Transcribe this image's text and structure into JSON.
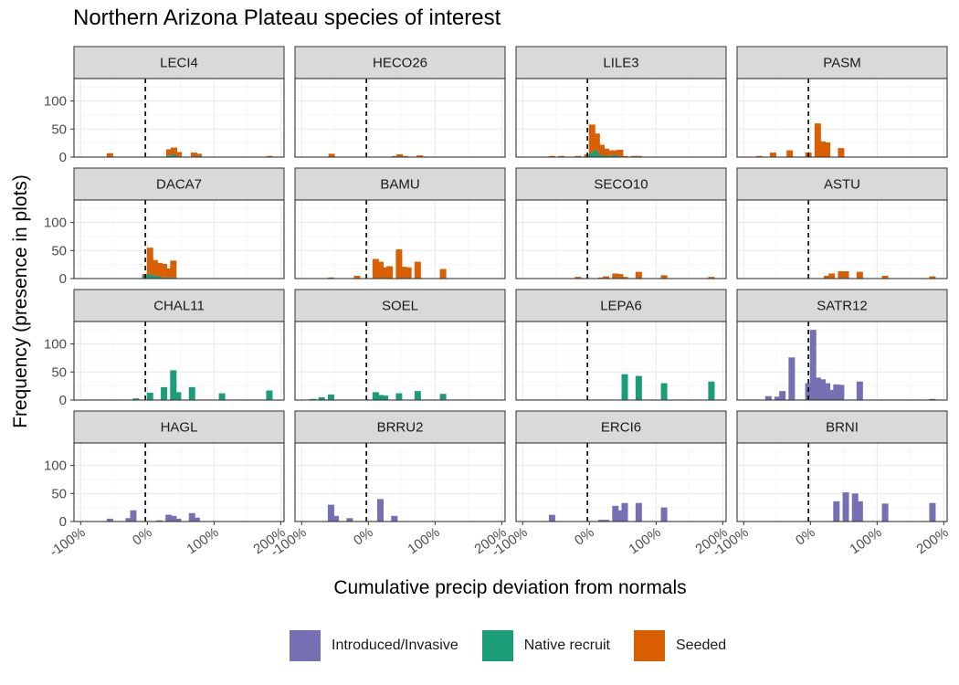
{
  "chart_data": {
    "type": "bar",
    "title": "Northern Arizona Plateau species of interest",
    "xlabel": "Cumulative precip deviation from normals",
    "ylabel": "Frequency (presence in plots)",
    "xlim": [
      -1.0,
      2.0
    ],
    "ylim": [
      0,
      130
    ],
    "x_ticks": [
      -1,
      0,
      1,
      2
    ],
    "x_tick_labels": [
      "-100%",
      "0%",
      "100%",
      "200%"
    ],
    "y_ticks": [
      0,
      50,
      100
    ],
    "y_tick_labels": [
      "0",
      "50",
      "100"
    ],
    "reference_line_x": -0.03,
    "stacked": true,
    "grid": true,
    "legend_position": "bottom",
    "colors": {
      "Introduced/Invasive": "#7570b3",
      "Native recruit": "#1b9e77",
      "Seeded": "#d95f02"
    },
    "legend": [
      "Introduced/Invasive",
      "Native recruit",
      "Seeded"
    ],
    "panels": [
      {
        "label": "LECI4",
        "bars": [
          {
            "x": -0.56,
            "values": {
              "Seeded": 7
            }
          },
          {
            "x": 0.33,
            "values": {
              "Native recruit": 3,
              "Seeded": 11
            }
          },
          {
            "x": 0.4,
            "values": {
              "Native recruit": 5,
              "Seeded": 12
            }
          },
          {
            "x": 0.47,
            "values": {
              "Native recruit": 2,
              "Seeded": 7
            }
          },
          {
            "x": 0.7,
            "values": {
              "Native recruit": 1,
              "Seeded": 7
            }
          },
          {
            "x": 0.77,
            "values": {
              "Native recruit": 2,
              "Seeded": 4
            }
          },
          {
            "x": 1.83,
            "values": {
              "Seeded": 2
            }
          }
        ]
      },
      {
        "label": "HECO26",
        "bars": [
          {
            "x": -0.55,
            "values": {
              "Seeded": 6
            }
          },
          {
            "x": 0.4,
            "values": {
              "Seeded": 2
            }
          },
          {
            "x": 0.47,
            "values": {
              "Seeded": 5
            }
          },
          {
            "x": 0.55,
            "values": {
              "Seeded": 2
            }
          },
          {
            "x": 0.77,
            "values": {
              "Seeded": 3
            }
          },
          {
            "x": 0.84,
            "values": {
              "Seeded": 1
            }
          }
        ]
      },
      {
        "label": "LILE3",
        "bars": [
          {
            "x": -0.56,
            "values": {
              "Seeded": 2
            }
          },
          {
            "x": -0.42,
            "values": {
              "Seeded": 2
            }
          },
          {
            "x": -0.17,
            "values": {
              "Seeded": 2
            }
          },
          {
            "x": -0.03,
            "values": {
              "Native recruit": 2,
              "Seeded": 3
            }
          },
          {
            "x": 0.04,
            "values": {
              "Native recruit": 8,
              "Seeded": 50
            }
          },
          {
            "x": 0.11,
            "values": {
              "Native recruit": 12,
              "Seeded": 30
            }
          },
          {
            "x": 0.18,
            "values": {
              "Native recruit": 4,
              "Seeded": 18
            }
          },
          {
            "x": 0.25,
            "values": {
              "Native recruit": 3,
              "Seeded": 12
            }
          },
          {
            "x": 0.32,
            "values": {
              "Native recruit": 2,
              "Seeded": 10
            }
          },
          {
            "x": 0.39,
            "values": {
              "Native recruit": 4,
              "Seeded": 8
            }
          },
          {
            "x": 0.46,
            "values": {
              "Native recruit": 2,
              "Seeded": 11
            }
          },
          {
            "x": 0.53,
            "values": {
              "Seeded": 2
            }
          },
          {
            "x": 0.67,
            "values": {
              "Seeded": 2
            }
          },
          {
            "x": 0.74,
            "values": {
              "Seeded": 2
            }
          }
        ]
      },
      {
        "label": "PASM",
        "bars": [
          {
            "x": -0.77,
            "values": {
              "Seeded": 2
            }
          },
          {
            "x": -0.56,
            "values": {
              "Seeded": 8
            }
          },
          {
            "x": -0.31,
            "values": {
              "Seeded": 12
            }
          },
          {
            "x": -0.03,
            "values": {
              "Seeded": 8
            }
          },
          {
            "x": 0.11,
            "values": {
              "Seeded": 60
            }
          },
          {
            "x": 0.18,
            "values": {
              "Seeded": 28
            }
          },
          {
            "x": 0.25,
            "values": {
              "Seeded": 26
            }
          },
          {
            "x": 0.46,
            "values": {
              "Seeded": 16
            }
          }
        ]
      },
      {
        "label": "DACA7",
        "bars": [
          {
            "x": -0.03,
            "values": {
              "Native recruit": 5,
              "Seeded": 3
            }
          },
          {
            "x": 0.04,
            "values": {
              "Native recruit": 8,
              "Seeded": 47
            }
          },
          {
            "x": 0.11,
            "values": {
              "Native recruit": 6,
              "Seeded": 27
            }
          },
          {
            "x": 0.18,
            "values": {
              "Native recruit": 4,
              "Seeded": 24
            }
          },
          {
            "x": 0.25,
            "values": {
              "Native recruit": 2,
              "Seeded": 24
            }
          },
          {
            "x": 0.32,
            "values": {
              "Native recruit": 2,
              "Seeded": 16
            }
          },
          {
            "x": 0.39,
            "values": {
              "Native recruit": 2,
              "Seeded": 30
            }
          }
        ]
      },
      {
        "label": "BAMU",
        "bars": [
          {
            "x": -0.56,
            "values": {
              "Seeded": 2
            }
          },
          {
            "x": -0.17,
            "values": {
              "Seeded": 5
            }
          },
          {
            "x": 0.11,
            "values": {
              "Seeded": 35
            }
          },
          {
            "x": 0.18,
            "values": {
              "Seeded": 30
            }
          },
          {
            "x": 0.25,
            "values": {
              "Seeded": 20
            }
          },
          {
            "x": 0.32,
            "values": {
              "Seeded": 22
            }
          },
          {
            "x": 0.46,
            "values": {
              "Seeded": 52
            }
          },
          {
            "x": 0.53,
            "values": {
              "Seeded": 21
            }
          },
          {
            "x": 0.6,
            "values": {
              "Seeded": 20
            }
          },
          {
            "x": 0.74,
            "values": {
              "Seeded": 30
            }
          },
          {
            "x": 1.12,
            "values": {
              "Seeded": 17
            }
          }
        ]
      },
      {
        "label": "SECO10",
        "bars": [
          {
            "x": -0.17,
            "values": {
              "Seeded": 3
            }
          },
          {
            "x": 0.18,
            "values": {
              "Seeded": 2
            }
          },
          {
            "x": 0.25,
            "values": {
              "Seeded": 4
            }
          },
          {
            "x": 0.39,
            "values": {
              "Seeded": 9
            }
          },
          {
            "x": 0.46,
            "values": {
              "Seeded": 8
            }
          },
          {
            "x": 0.53,
            "values": {
              "Seeded": 3
            }
          },
          {
            "x": 0.74,
            "values": {
              "Seeded": 12
            }
          },
          {
            "x": 1.12,
            "values": {
              "Seeded": 6
            }
          },
          {
            "x": 1.83,
            "values": {
              "Seeded": 3
            }
          }
        ]
      },
      {
        "label": "ASTU",
        "bars": [
          {
            "x": 0.25,
            "values": {
              "Seeded": 5
            }
          },
          {
            "x": 0.32,
            "values": {
              "Seeded": 9
            }
          },
          {
            "x": 0.46,
            "values": {
              "Seeded": 13
            }
          },
          {
            "x": 0.53,
            "values": {
              "Seeded": 13
            }
          },
          {
            "x": 0.74,
            "values": {
              "Seeded": 12
            }
          },
          {
            "x": 1.12,
            "values": {
              "Seeded": 5
            }
          },
          {
            "x": 1.83,
            "values": {
              "Seeded": 4
            }
          }
        ]
      },
      {
        "label": "CHAL11",
        "bars": [
          {
            "x": -0.17,
            "values": {
              "Native recruit": 3
            }
          },
          {
            "x": 0.04,
            "values": {
              "Native recruit": 13
            }
          },
          {
            "x": 0.25,
            "values": {
              "Native recruit": 23
            }
          },
          {
            "x": 0.39,
            "values": {
              "Native recruit": 53
            }
          },
          {
            "x": 0.46,
            "values": {
              "Native recruit": 14
            }
          },
          {
            "x": 0.67,
            "values": {
              "Native recruit": 23
            }
          },
          {
            "x": 1.12,
            "values": {
              "Native recruit": 12
            }
          },
          {
            "x": 1.83,
            "values": {
              "Native recruit": 17
            }
          }
        ]
      },
      {
        "label": "SOEL",
        "bars": [
          {
            "x": -0.83,
            "values": {
              "Native recruit": 2
            }
          },
          {
            "x": -0.7,
            "values": {
              "Native recruit": 5
            }
          },
          {
            "x": -0.56,
            "values": {
              "Native recruit": 10
            }
          },
          {
            "x": 0.11,
            "values": {
              "Native recruit": 14
            }
          },
          {
            "x": 0.18,
            "values": {
              "Native recruit": 9
            }
          },
          {
            "x": 0.25,
            "values": {
              "Native recruit": 8
            }
          },
          {
            "x": 0.46,
            "values": {
              "Native recruit": 12
            }
          },
          {
            "x": 0.74,
            "values": {
              "Native recruit": 16
            }
          },
          {
            "x": 1.12,
            "values": {
              "Native recruit": 11
            }
          }
        ]
      },
      {
        "label": "LEPA6",
        "bars": [
          {
            "x": 0.53,
            "values": {
              "Native recruit": 46
            }
          },
          {
            "x": 0.74,
            "values": {
              "Native recruit": 43
            }
          },
          {
            "x": 1.12,
            "values": {
              "Native recruit": 30
            }
          },
          {
            "x": 1.83,
            "values": {
              "Native recruit": 33
            }
          }
        ]
      },
      {
        "label": "SATR12",
        "bars": [
          {
            "x": -0.63,
            "values": {
              "Introduced/Invasive": 7
            }
          },
          {
            "x": -0.49,
            "values": {
              "Introduced/Invasive": 6
            }
          },
          {
            "x": -0.42,
            "values": {
              "Introduced/Invasive": 16
            }
          },
          {
            "x": -0.28,
            "values": {
              "Introduced/Invasive": 76
            }
          },
          {
            "x": -0.03,
            "values": {
              "Introduced/Invasive": 30
            }
          },
          {
            "x": 0.04,
            "values": {
              "Introduced/Invasive": 125
            }
          },
          {
            "x": 0.11,
            "values": {
              "Introduced/Invasive": 40
            }
          },
          {
            "x": 0.18,
            "values": {
              "Introduced/Invasive": 37
            }
          },
          {
            "x": 0.25,
            "values": {
              "Introduced/Invasive": 30
            }
          },
          {
            "x": 0.32,
            "values": {
              "Introduced/Invasive": 18
            }
          },
          {
            "x": 0.39,
            "values": {
              "Introduced/Invasive": 28
            }
          },
          {
            "x": 0.46,
            "values": {
              "Introduced/Invasive": 27
            }
          },
          {
            "x": 0.74,
            "values": {
              "Introduced/Invasive": 33
            }
          },
          {
            "x": 1.83,
            "values": {
              "Introduced/Invasive": 2
            }
          }
        ]
      },
      {
        "label": "HAGL",
        "bars": [
          {
            "x": -0.56,
            "values": {
              "Introduced/Invasive": 5
            }
          },
          {
            "x": -0.28,
            "values": {
              "Introduced/Invasive": 6
            }
          },
          {
            "x": -0.21,
            "values": {
              "Introduced/Invasive": 20
            }
          },
          {
            "x": 0.18,
            "values": {
              "Introduced/Invasive": 2
            }
          },
          {
            "x": 0.32,
            "values": {
              "Introduced/Invasive": 12
            }
          },
          {
            "x": 0.39,
            "values": {
              "Introduced/Invasive": 10
            }
          },
          {
            "x": 0.46,
            "values": {
              "Introduced/Invasive": 5
            }
          },
          {
            "x": 0.67,
            "values": {
              "Introduced/Invasive": 15
            }
          },
          {
            "x": 0.74,
            "values": {
              "Introduced/Invasive": 7
            }
          }
        ]
      },
      {
        "label": "BRRU2",
        "bars": [
          {
            "x": -0.56,
            "values": {
              "Introduced/Invasive": 30
            }
          },
          {
            "x": -0.49,
            "values": {
              "Introduced/Invasive": 10
            }
          },
          {
            "x": -0.28,
            "values": {
              "Introduced/Invasive": 6
            }
          },
          {
            "x": 0.18,
            "values": {
              "Introduced/Invasive": 40
            }
          },
          {
            "x": 0.39,
            "values": {
              "Introduced/Invasive": 10
            }
          }
        ]
      },
      {
        "label": "ERCI6",
        "bars": [
          {
            "x": -0.56,
            "values": {
              "Introduced/Invasive": 12
            }
          },
          {
            "x": 0.18,
            "values": {
              "Introduced/Invasive": 3
            }
          },
          {
            "x": 0.25,
            "values": {
              "Introduced/Invasive": 3
            }
          },
          {
            "x": 0.39,
            "values": {
              "Introduced/Invasive": 28
            }
          },
          {
            "x": 0.46,
            "values": {
              "Introduced/Invasive": 20
            }
          },
          {
            "x": 0.53,
            "values": {
              "Introduced/Invasive": 33
            }
          },
          {
            "x": 0.74,
            "values": {
              "Introduced/Invasive": 33
            }
          },
          {
            "x": 1.12,
            "values": {
              "Introduced/Invasive": 25
            }
          }
        ]
      },
      {
        "label": "BRNI",
        "bars": [
          {
            "x": 0.39,
            "values": {
              "Introduced/Invasive": 36
            }
          },
          {
            "x": 0.53,
            "values": {
              "Introduced/Invasive": 52
            }
          },
          {
            "x": 0.67,
            "values": {
              "Introduced/Invasive": 50
            }
          },
          {
            "x": 0.74,
            "values": {
              "Introduced/Invasive": 36
            }
          },
          {
            "x": 1.12,
            "values": {
              "Introduced/Invasive": 32
            }
          },
          {
            "x": 1.83,
            "values": {
              "Introduced/Invasive": 33
            }
          }
        ]
      }
    ]
  }
}
